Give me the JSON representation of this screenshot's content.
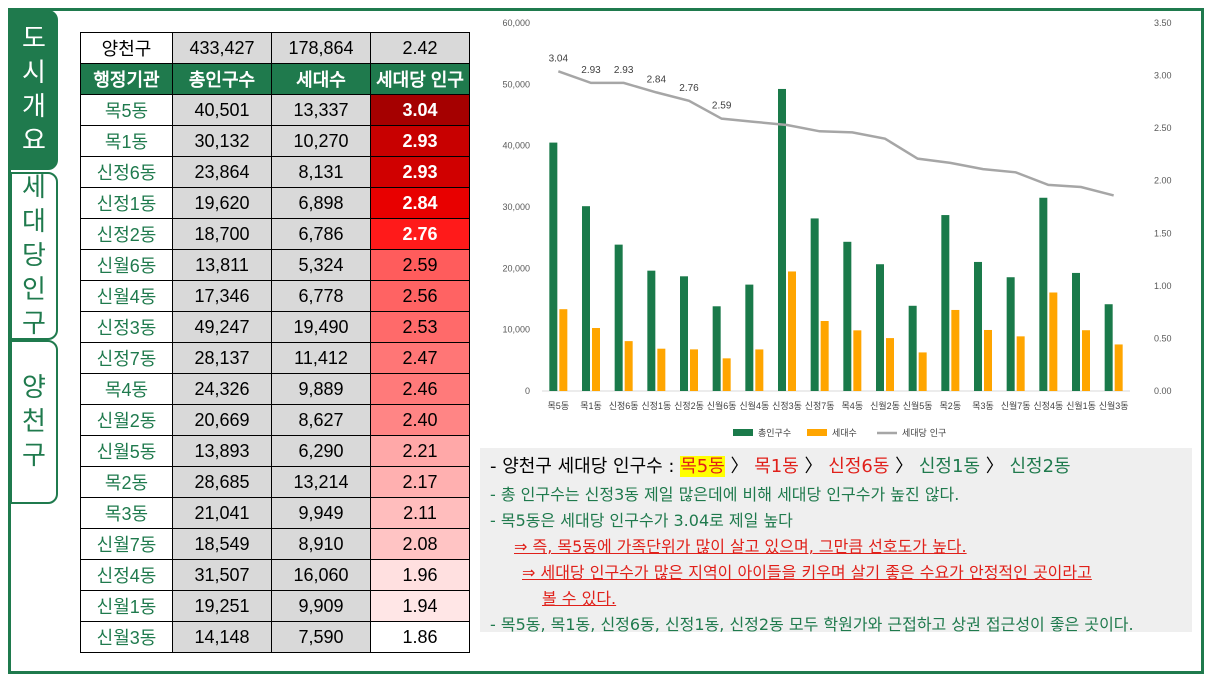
{
  "tabs": [
    {
      "label": "도시개요",
      "active": true
    },
    {
      "label": "세대당인구",
      "active": false
    },
    {
      "label": "양천구",
      "active": false
    }
  ],
  "table": {
    "total": {
      "name": "양천구",
      "population": "433,427",
      "households": "178,864",
      "per_household": "2.42"
    },
    "headers": [
      "행정기관",
      "총인구수",
      "세대수",
      "세대당 인구"
    ],
    "rows": [
      {
        "dong": "목5동",
        "population": "40,501",
        "households": "13,337",
        "per_household": "3.04",
        "bg": "#a50000",
        "fg": "#ffffff"
      },
      {
        "dong": "목1동",
        "population": "30,132",
        "households": "10,270",
        "per_household": "2.93",
        "bg": "#c80000",
        "fg": "#ffffff"
      },
      {
        "dong": "신정6동",
        "population": "23,864",
        "households": "8,131",
        "per_household": "2.93",
        "bg": "#d00000",
        "fg": "#ffffff"
      },
      {
        "dong": "신정1동",
        "population": "19,620",
        "households": "6,898",
        "per_household": "2.84",
        "bg": "#e80000",
        "fg": "#ffffff"
      },
      {
        "dong": "신정2동",
        "population": "18,700",
        "households": "6,786",
        "per_household": "2.76",
        "bg": "#ff1a1a",
        "fg": "#ffffff"
      },
      {
        "dong": "신월6동",
        "population": "13,811",
        "households": "5,324",
        "per_household": "2.59",
        "bg": "#ff5c5c",
        "fg": "#000000"
      },
      {
        "dong": "신월4동",
        "population": "17,346",
        "households": "6,778",
        "per_household": "2.56",
        "bg": "#ff6363",
        "fg": "#000000"
      },
      {
        "dong": "신정3동",
        "population": "49,247",
        "households": "19,490",
        "per_household": "2.53",
        "bg": "#ff6a6a",
        "fg": "#000000"
      },
      {
        "dong": "신정7동",
        "population": "28,137",
        "households": "11,412",
        "per_household": "2.47",
        "bg": "#ff7676",
        "fg": "#000000"
      },
      {
        "dong": "목4동",
        "population": "24,326",
        "households": "9,889",
        "per_household": "2.46",
        "bg": "#ff7a7a",
        "fg": "#000000"
      },
      {
        "dong": "신월2동",
        "population": "20,669",
        "households": "8,627",
        "per_household": "2.40",
        "bg": "#ff8585",
        "fg": "#000000"
      },
      {
        "dong": "신월5동",
        "population": "13,893",
        "households": "6,290",
        "per_household": "2.21",
        "bg": "#ffa8a8",
        "fg": "#000000"
      },
      {
        "dong": "목2동",
        "population": "28,685",
        "households": "13,214",
        "per_household": "2.17",
        "bg": "#ffb0b0",
        "fg": "#000000"
      },
      {
        "dong": "목3동",
        "population": "21,041",
        "households": "9,949",
        "per_household": "2.11",
        "bg": "#ffbdbd",
        "fg": "#000000"
      },
      {
        "dong": "신월7동",
        "population": "18,549",
        "households": "8,910",
        "per_household": "2.08",
        "bg": "#ffc4c4",
        "fg": "#000000"
      },
      {
        "dong": "신정4동",
        "population": "31,507",
        "households": "16,060",
        "per_household": "1.96",
        "bg": "#ffe0e0",
        "fg": "#000000"
      },
      {
        "dong": "신월1동",
        "population": "19,251",
        "households": "9,909",
        "per_household": "1.94",
        "bg": "#ffe6e6",
        "fg": "#000000"
      },
      {
        "dong": "신월3동",
        "population": "14,148",
        "households": "7,590",
        "per_household": "1.86",
        "bg": "#ffffff",
        "fg": "#000000"
      }
    ]
  },
  "chart_data": {
    "type": "bar",
    "categories": [
      "목5동",
      "목1동",
      "신정6동",
      "신정1동",
      "신정2동",
      "신월6동",
      "신월4동",
      "신정3동",
      "신정7동",
      "목4동",
      "신월2동",
      "신월5동",
      "목2동",
      "목3동",
      "신월7동",
      "신정4동",
      "신월1동",
      "신월3동"
    ],
    "series": [
      {
        "name": "총인구수",
        "type": "bar",
        "axis": "left",
        "color": "#1a7a4a",
        "values": [
          40501,
          30132,
          23864,
          19620,
          18700,
          13811,
          17346,
          49247,
          28137,
          24326,
          20669,
          13893,
          28685,
          21041,
          18549,
          31507,
          19251,
          14148
        ]
      },
      {
        "name": "세대수",
        "type": "bar",
        "axis": "left",
        "color": "#ffa500",
        "values": [
          13337,
          10270,
          8131,
          6898,
          6786,
          5324,
          6778,
          19490,
          11412,
          9889,
          8627,
          6290,
          13214,
          9949,
          8910,
          16060,
          9909,
          7590
        ]
      },
      {
        "name": "세대당 인구",
        "type": "line",
        "axis": "right",
        "color": "#a6a6a6",
        "values": [
          3.04,
          2.93,
          2.93,
          2.84,
          2.76,
          2.59,
          2.56,
          2.53,
          2.47,
          2.46,
          2.4,
          2.21,
          2.17,
          2.11,
          2.08,
          1.96,
          1.94,
          1.86
        ]
      }
    ],
    "data_labels": [
      "3.04",
      "2.93",
      "2.93",
      "2.84",
      "2.76",
      "2.59"
    ],
    "ylim": [
      0,
      60000
    ],
    "y_ticks": [
      "0",
      "10,000",
      "20,000",
      "30,000",
      "40,000",
      "50,000",
      "60,000"
    ],
    "y2lim": [
      0,
      3.5
    ],
    "y2_ticks": [
      "0.00",
      "0.50",
      "1.00",
      "1.50",
      "2.00",
      "2.50",
      "3.00",
      "3.50"
    ],
    "legend_position": "bottom"
  },
  "notes": {
    "line1": {
      "prefix": "-  양천구 세대당 인구수 : ",
      "items": [
        "목5동",
        "목1동",
        "신정6동",
        "신정1동",
        "신정2동"
      ],
      "sep": " 〉 "
    },
    "line2": "-  총 인구수는 신정3동 제일 많은데에 비해 세대당 인구수가 높진 않다.",
    "line3": "-  목5동은 세대당 인구수가 3.04로 제일 높다",
    "line4": "⇒ 즉, 목5동에 가족단위가 많이 살고 있으며, 그만큼 선호도가 높다.",
    "line5": "⇒ 세대당 인구수가 많은 지역이 아이들을 키우며 살기 좋은 수요가 안정적인 곳이라고",
    "line6": "볼 수 있다.",
    "line7": "-  목5동, 목1동, 신정6동, 신정1동, 신정2동 모두 학원가와 근접하고 상권 접근성이 좋은 곳이다."
  }
}
